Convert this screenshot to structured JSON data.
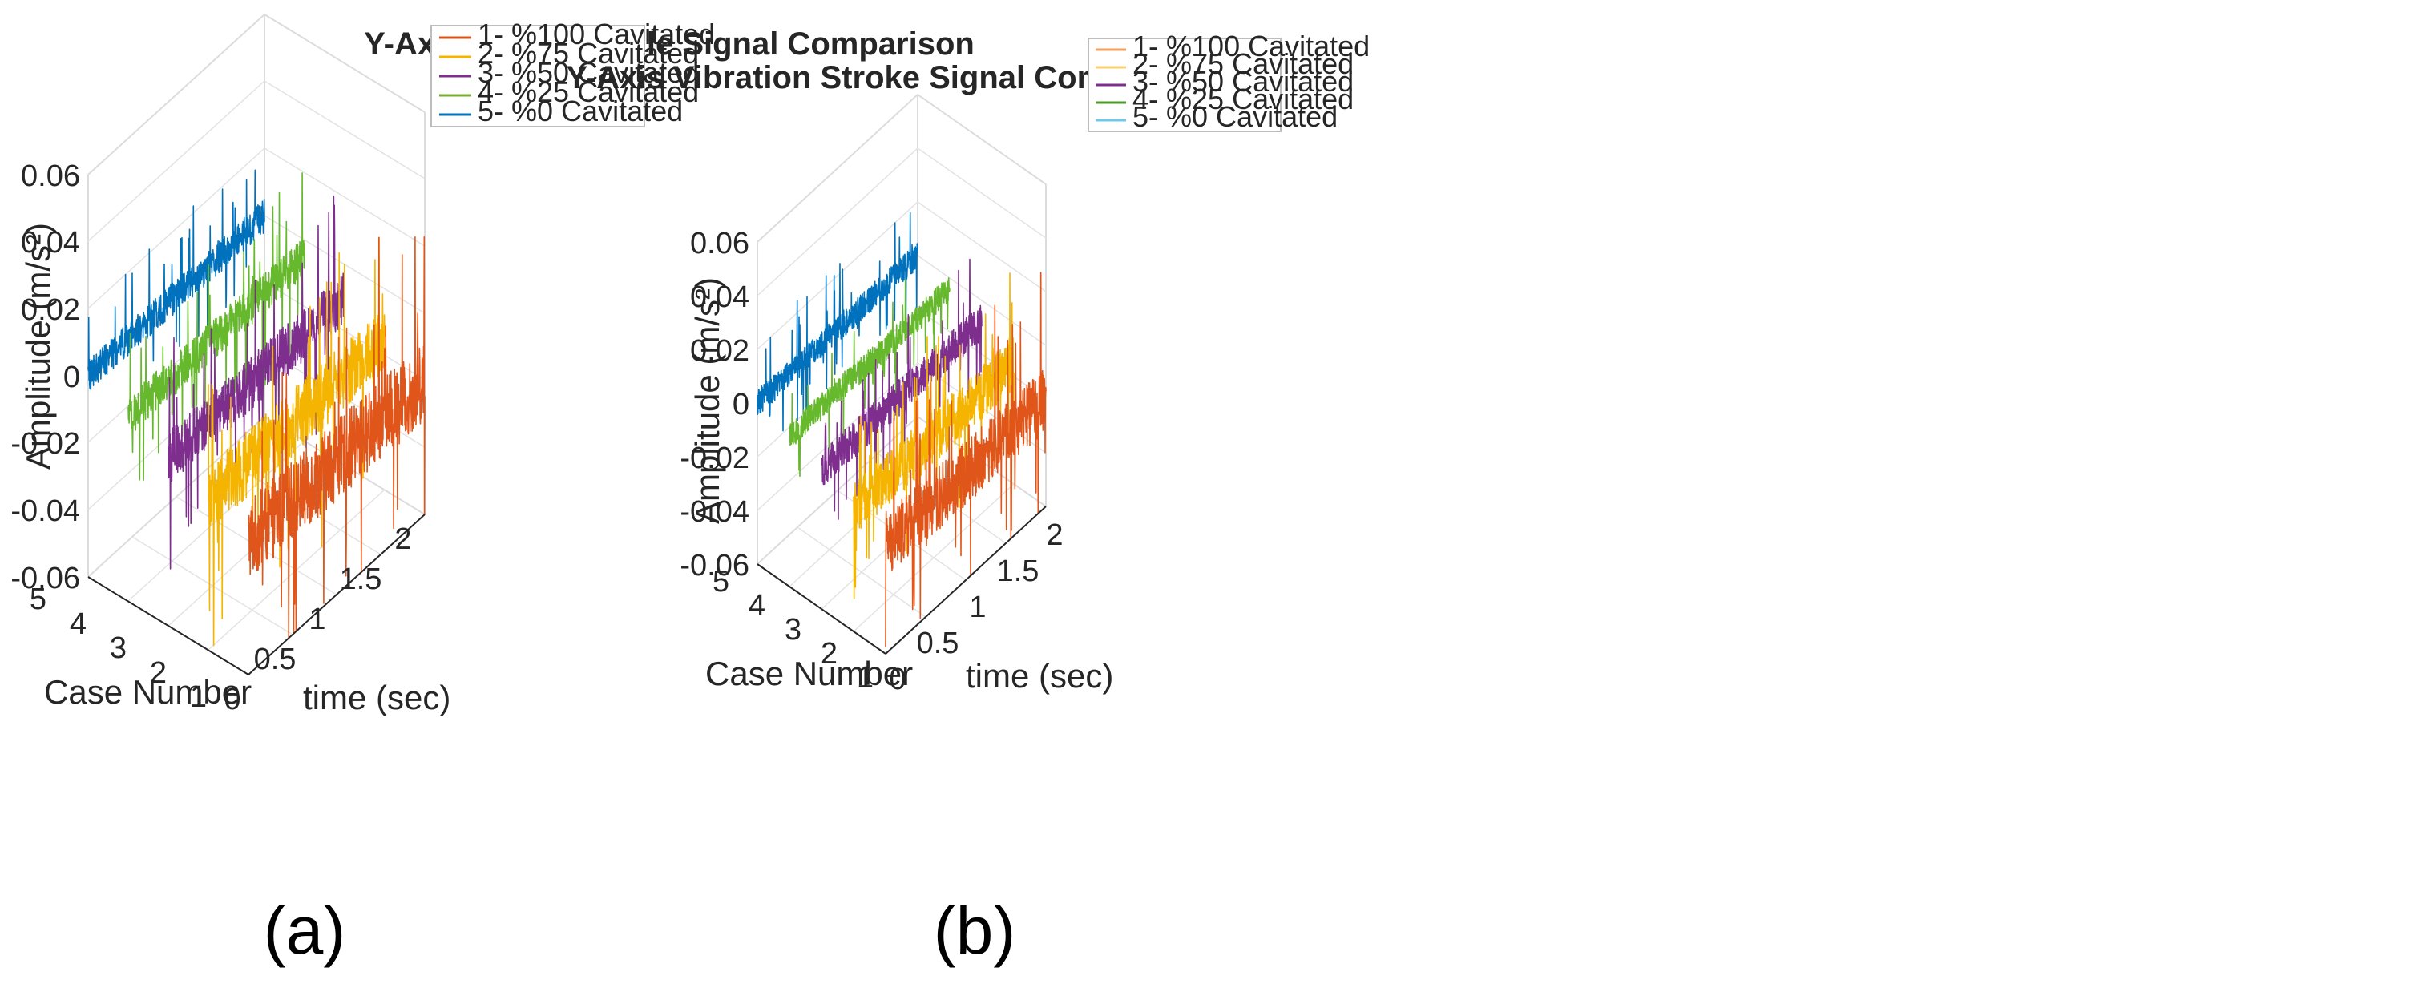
{
  "colors": {
    "series_1": "#E0561A",
    "series_2": "#F4B400",
    "series_3": "#7E2F8E",
    "series_4": "#66B82C",
    "series_5": "#0072BD"
  },
  "chart_data": [
    {
      "panel": "(a)",
      "type": "line",
      "title": "Y-Axis Vibration Idle Signal Comparison",
      "xlabel": "time (sec)",
      "ylabel": "Case Number",
      "zlabel": "Amplitude (m/s²)",
      "xlim": [
        0,
        2
      ],
      "ylim": [
        1,
        5
      ],
      "zlim": [
        -0.06,
        0.06
      ],
      "x_ticks": [
        "0",
        "0.5",
        "1",
        "1.5",
        "2"
      ],
      "y_ticks": [
        "1",
        "2",
        "3",
        "4",
        "5"
      ],
      "z_ticks": [
        "0.06",
        "0.04",
        "0.02",
        "0",
        "-0.02",
        "-0.04",
        "-0.06"
      ],
      "grid": true,
      "legend_position": "top-right, outside",
      "series": [
        {
          "name": "1- %100 Cavitated",
          "case": 1,
          "mean": -0.02,
          "noise": 0.012,
          "spike": 0.045
        },
        {
          "name": "2- %75 Cavitated",
          "case": 2,
          "mean": -0.015,
          "noise": 0.01,
          "spike": 0.04
        },
        {
          "name": "3- %50 Cavitated",
          "case": 3,
          "mean": -0.01,
          "noise": 0.008,
          "spike": 0.03
        },
        {
          "name": "4- %25 Cavitated",
          "case": 4,
          "mean": -0.005,
          "noise": 0.006,
          "spike": 0.025
        },
        {
          "name": "5- %0 Cavitated",
          "case": 5,
          "mean": 0.0,
          "noise": 0.005,
          "spike": 0.02
        }
      ]
    },
    {
      "panel": "(b)",
      "type": "line",
      "title": "Y-Axis Vibration Stroke Signal Comparison",
      "xlabel": "time (sec)",
      "ylabel": "Case Number",
      "zlabel": "Amplitude (m/s²)",
      "xlim": [
        0,
        2
      ],
      "ylim": [
        1,
        5
      ],
      "zlim": [
        -0.06,
        0.06
      ],
      "x_ticks": [
        "0",
        "0.5",
        "1",
        "1.5",
        "2"
      ],
      "y_ticks": [
        "1",
        "2",
        "3",
        "4",
        "5"
      ],
      "z_ticks": [
        "0.06",
        "0.04",
        "0.02",
        "0",
        "-0.02",
        "-0.04",
        "-0.06"
      ],
      "grid": true,
      "legend_position": "top-right, outside",
      "series": [
        {
          "name": "1- %100 Cavitated",
          "case": 1,
          "mean": -0.02,
          "noise": 0.012,
          "spike": 0.045
        },
        {
          "name": "2- %75 Cavitated",
          "case": 2,
          "mean": -0.015,
          "noise": 0.01,
          "spike": 0.035
        },
        {
          "name": "3- %50 Cavitated",
          "case": 3,
          "mean": -0.008,
          "noise": 0.007,
          "spike": 0.025
        },
        {
          "name": "4- %25 Cavitated",
          "case": 4,
          "mean": -0.004,
          "noise": 0.005,
          "spike": 0.02
        },
        {
          "name": "5- %0 Cavitated",
          "case": 5,
          "mean": 0.0,
          "noise": 0.005,
          "spike": 0.02
        }
      ]
    }
  ]
}
